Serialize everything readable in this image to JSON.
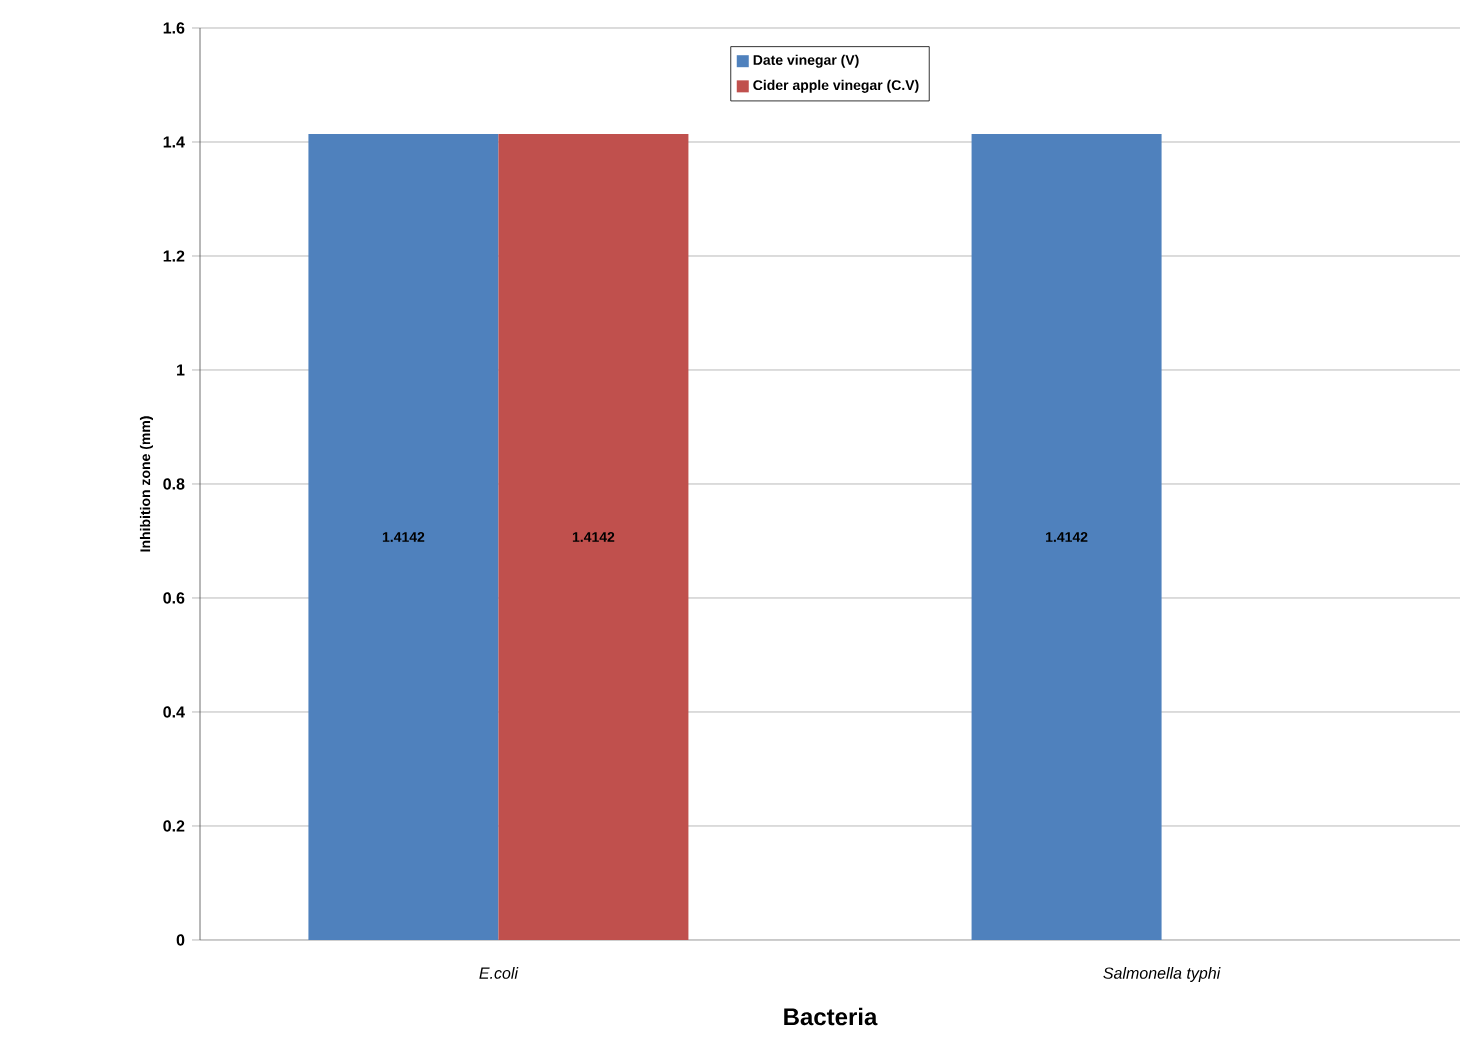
{
  "chart_data": {
    "type": "bar",
    "xlabel": "Bacteria",
    "ylabel": "Inhibition zone (mm)",
    "categories": [
      "E.coli",
      "Salmonella typhi"
    ],
    "series": [
      {
        "name": "Date vinegar (V)",
        "color": "#4f81bd",
        "values": [
          1.4142,
          1.4142
        ]
      },
      {
        "name": "Cider apple vinegar (C.V)",
        "color": "#c0504d",
        "values": [
          1.4142,
          null
        ]
      }
    ],
    "ylim": [
      0,
      1.6
    ],
    "yticks": [
      0,
      0.2,
      0.4,
      0.6,
      0.8,
      1,
      1.2,
      1.4,
      1.6
    ],
    "grid": "y",
    "legend": "top",
    "data_labels": true
  }
}
